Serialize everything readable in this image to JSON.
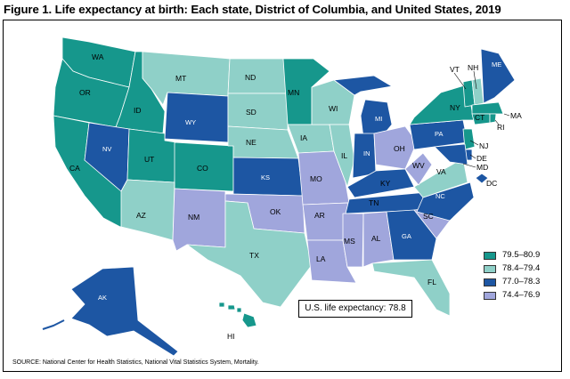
{
  "title": "Figure 1. Life expectancy at birth: Each state, District of Columbia, and United States, 2019",
  "us_box": "U.S. life expectancy: 78.8",
  "source": "SOURCE: National Center for Health Statistics, National Vital Statistics System, Mortality.",
  "legend": [
    {
      "label": "79.5–80.9",
      "color": "#16978c"
    },
    {
      "label": "78.4–79.4",
      "color": "#8fd0c8"
    },
    {
      "label": "77.0–78.3",
      "color": "#1d56a3"
    },
    {
      "label": "74.4–76.9",
      "color": "#a0a6dc"
    }
  ],
  "states": {
    "WA": "WA",
    "OR": "OR",
    "CA": "CA",
    "ID": "ID",
    "NV": "NV",
    "MT": "MT",
    "WY": "WY",
    "UT": "UT",
    "AZ": "AZ",
    "CO": "CO",
    "NM": "NM",
    "ND": "ND",
    "SD": "SD",
    "NE": "NE",
    "KS": "KS",
    "OK": "OK",
    "TX": "TX",
    "MN": "MN",
    "IA": "IA",
    "MO": "MO",
    "AR": "AR",
    "LA": "LA",
    "WI": "WI",
    "IL": "IL",
    "MI": "MI",
    "IN": "IN",
    "OH": "OH",
    "KY": "KY",
    "TN": "TN",
    "MS": "MS",
    "AL": "AL",
    "GA": "GA",
    "FL": "FL",
    "SC": "SC",
    "NC": "NC",
    "VA": "VA",
    "WV": "WV",
    "PA": "PA",
    "NY": "NY",
    "VT": "VT",
    "NH": "NH",
    "ME": "ME",
    "MA": "MA",
    "CT": "CT",
    "RI": "RI",
    "NJ": "NJ",
    "DE": "DE",
    "MD": "MD",
    "DC": "DC",
    "AK": "AK",
    "HI": "HI"
  }
}
